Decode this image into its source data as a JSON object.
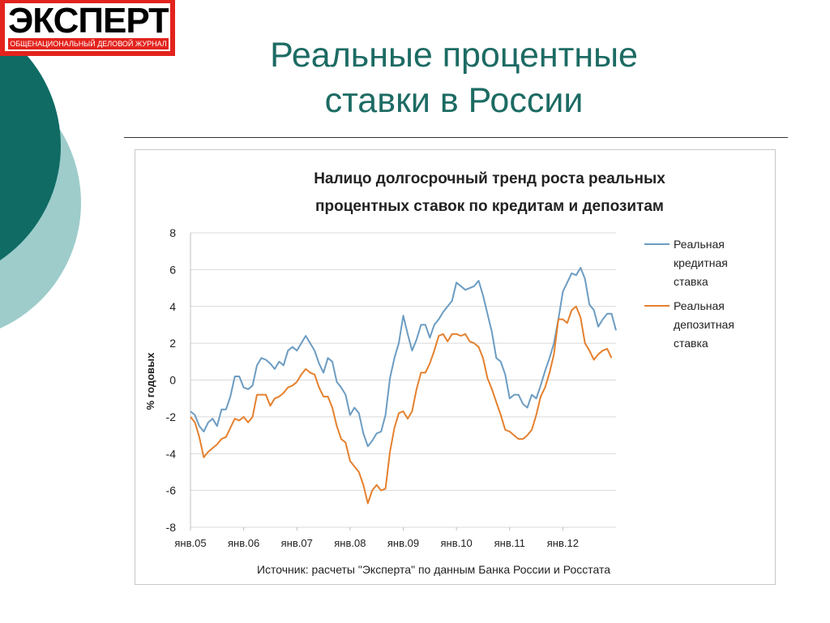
{
  "logo": {
    "word": "ЭКСПЕРТ",
    "tagline": "ОБЩЕНАЦИОНАЛЬНЫЙ ДЕЛОВОЙ ЖУРНАЛ"
  },
  "slide_title": {
    "line1": "Реальные процентные",
    "line2": "ставки в России"
  },
  "colors": {
    "title": "#1c6b63",
    "decor_dark": "#0f6b64",
    "decor_light": "#9dcccb",
    "credit_line": "#6c9cc2",
    "deposit_line": "#e5802e"
  },
  "chart_data": {
    "type": "line",
    "title_line1": "Налицо долгосрочный тренд роста реальных",
    "title_line2": "процентных ставок по кредитам и депозитам",
    "ylabel": "% годовых",
    "source": "Источник: расчеты \"Эксперта\" по данным Банка России и Росстата",
    "ylim": [
      -8,
      8
    ],
    "yticks": [
      "8",
      "6",
      "4",
      "2",
      "0",
      "-2",
      "-4",
      "-6",
      "-8"
    ],
    "x_start": "янв.05",
    "x_step": "1 month",
    "xtick_labels": [
      "янв.05",
      "янв.06",
      "янв.07",
      "янв.08",
      "янв.09",
      "янв.10",
      "янв.11",
      "янв.12"
    ],
    "grid": "horizontal",
    "legend_position": "right",
    "series": [
      {
        "name": "Реальная кредитная ставка",
        "color": "#6c9cc2",
        "values": [
          -1.7,
          -1.9,
          -2.5,
          -2.8,
          -2.3,
          -2.1,
          -2.5,
          -1.6,
          -1.6,
          -0.9,
          0.2,
          0.2,
          -0.4,
          -0.5,
          -0.3,
          0.8,
          1.2,
          1.1,
          0.9,
          0.6,
          1.0,
          0.8,
          1.6,
          1.8,
          1.6,
          2.0,
          2.4,
          2.0,
          1.6,
          0.9,
          0.4,
          1.2,
          1.0,
          -0.1,
          -0.4,
          -0.8,
          -1.9,
          -1.5,
          -1.8,
          -2.9,
          -3.6,
          -3.3,
          -2.9,
          -2.8,
          -1.9,
          0.1,
          1.2,
          2.0,
          3.5,
          2.5,
          1.6,
          2.2,
          3.0,
          3.0,
          2.3,
          3.0,
          3.3,
          3.7,
          4.0,
          4.3,
          5.3,
          5.1,
          4.9,
          5.0,
          5.1,
          5.4,
          4.6,
          3.6,
          2.6,
          1.2,
          1.0,
          0.3,
          -1.0,
          -0.8,
          -0.8,
          -1.3,
          -1.5,
          -0.8,
          -1.0,
          -0.3,
          0.5,
          1.2,
          2.0,
          3.3,
          4.8,
          5.3,
          5.8,
          5.7,
          6.1,
          5.5,
          4.1,
          3.8,
          2.9,
          3.3,
          3.6,
          3.6,
          2.7
        ]
      },
      {
        "name": "Реальная депозитная ставка",
        "color": "#e5802e",
        "values": [
          -2.0,
          -2.3,
          -3.1,
          -4.2,
          -3.9,
          -3.7,
          -3.5,
          -3.2,
          -3.1,
          -2.6,
          -2.1,
          -2.2,
          -2.0,
          -2.3,
          -2.0,
          -0.8,
          -0.8,
          -0.8,
          -1.4,
          -1.0,
          -0.9,
          -0.7,
          -0.4,
          -0.3,
          -0.1,
          0.3,
          0.6,
          0.4,
          0.3,
          -0.4,
          -0.9,
          -0.9,
          -1.5,
          -2.5,
          -3.2,
          -3.4,
          -4.4,
          -4.7,
          -5.0,
          -5.7,
          -6.7,
          -6.0,
          -5.7,
          -6.0,
          -5.9,
          -3.9,
          -2.6,
          -1.8,
          -1.7,
          -2.1,
          -1.7,
          -0.5,
          0.4,
          0.4,
          0.9,
          1.6,
          2.4,
          2.5,
          2.1,
          2.5,
          2.5,
          2.4,
          2.5,
          2.1,
          2.0,
          1.8,
          1.2,
          0.1,
          -0.5,
          -1.2,
          -1.9,
          -2.7,
          -2.8,
          -3.0,
          -3.2,
          -3.2,
          -3.0,
          -2.7,
          -1.9,
          -0.9,
          -0.4,
          0.4,
          1.4,
          3.3,
          3.3,
          3.1,
          3.8,
          4.0,
          3.4,
          2.0,
          1.6,
          1.1,
          1.4,
          1.6,
          1.7,
          1.2
        ]
      }
    ]
  }
}
